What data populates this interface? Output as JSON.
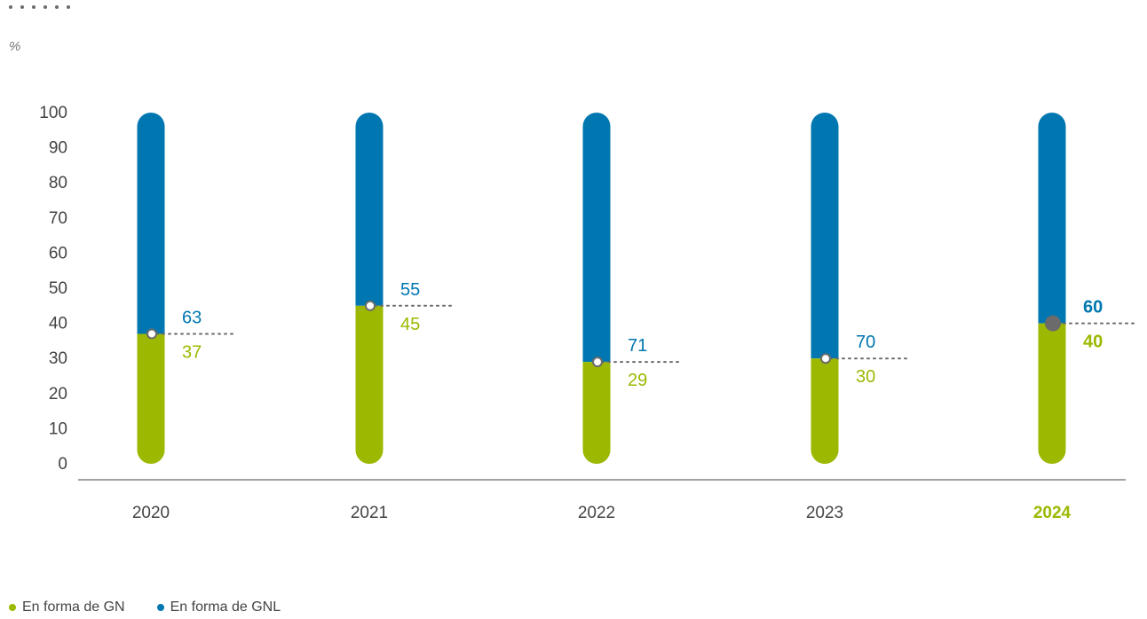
{
  "unit_label": "%",
  "colors": {
    "gn": "#9cb800",
    "gnl": "#0077b0",
    "axis": "#6b6b6b",
    "text": "#444444",
    "marker": "#6b6b6b"
  },
  "chart_data": {
    "type": "bar",
    "stacked": true,
    "title": "",
    "xlabel": "",
    "ylabel": "%",
    "ylim": [
      0,
      100
    ],
    "yticks": [
      0,
      10,
      20,
      30,
      40,
      50,
      60,
      70,
      80,
      90,
      100
    ],
    "categories": [
      "2020",
      "2021",
      "2022",
      "2023",
      "2024"
    ],
    "highlight_category": "2024",
    "series": [
      {
        "name": "En forma de GN",
        "color": "#9cb800",
        "values": [
          37,
          45,
          29,
          30,
          40
        ]
      },
      {
        "name": "En forma de GNL",
        "color": "#0077b0",
        "values": [
          63,
          55,
          71,
          70,
          60
        ]
      }
    ],
    "legend": [
      {
        "label": "En forma de GN",
        "color": "#9cb800"
      },
      {
        "label": "En forma de GNL",
        "color": "#0077b0"
      }
    ],
    "legend_position": "bottom-left",
    "grid": false
  }
}
